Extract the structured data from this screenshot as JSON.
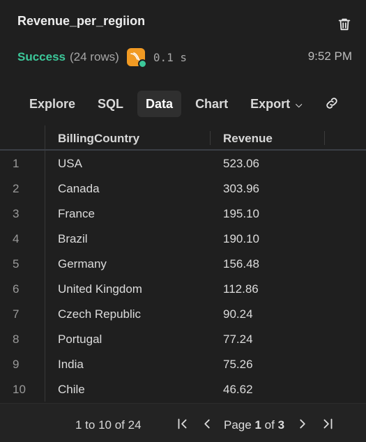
{
  "header": {
    "title": "Revenue_per_regiion",
    "status": "Success",
    "row_count": "(24 rows)",
    "duration": "0.1 s",
    "time": "9:52 PM"
  },
  "tabs": [
    {
      "label": "Explore"
    },
    {
      "label": "SQL"
    },
    {
      "label": "Data"
    },
    {
      "label": "Chart"
    },
    {
      "label": "Export"
    }
  ],
  "table": {
    "columns": [
      "BillingCountry",
      "Revenue"
    ],
    "rows": [
      {
        "n": "1",
        "country": "USA",
        "revenue": "523.06"
      },
      {
        "n": "2",
        "country": "Canada",
        "revenue": "303.96"
      },
      {
        "n": "3",
        "country": "France",
        "revenue": "195.10"
      },
      {
        "n": "4",
        "country": "Brazil",
        "revenue": "190.10"
      },
      {
        "n": "5",
        "country": "Germany",
        "revenue": "156.48"
      },
      {
        "n": "6",
        "country": "United Kingdom",
        "revenue": "112.86"
      },
      {
        "n": "7",
        "country": "Czech Republic",
        "revenue": "90.24"
      },
      {
        "n": "8",
        "country": "Portugal",
        "revenue": "77.24"
      },
      {
        "n": "9",
        "country": "India",
        "revenue": "75.26"
      },
      {
        "n": "10",
        "country": "Chile",
        "revenue": "46.62"
      }
    ]
  },
  "pagination": {
    "range": "1 to 10 of 24",
    "page_label": "Page",
    "page": "1",
    "of_label": "of",
    "total_pages": "3"
  },
  "icons": {
    "delete": "trash-icon",
    "database": "mysql-icon",
    "link": "link-icon",
    "first": "first-page-icon",
    "prev": "prev-page-icon",
    "next": "next-page-icon",
    "last": "last-page-icon"
  },
  "colors": {
    "background": "#1f1f1f",
    "success": "#3cc89a",
    "db_badge": "#f19a23"
  }
}
